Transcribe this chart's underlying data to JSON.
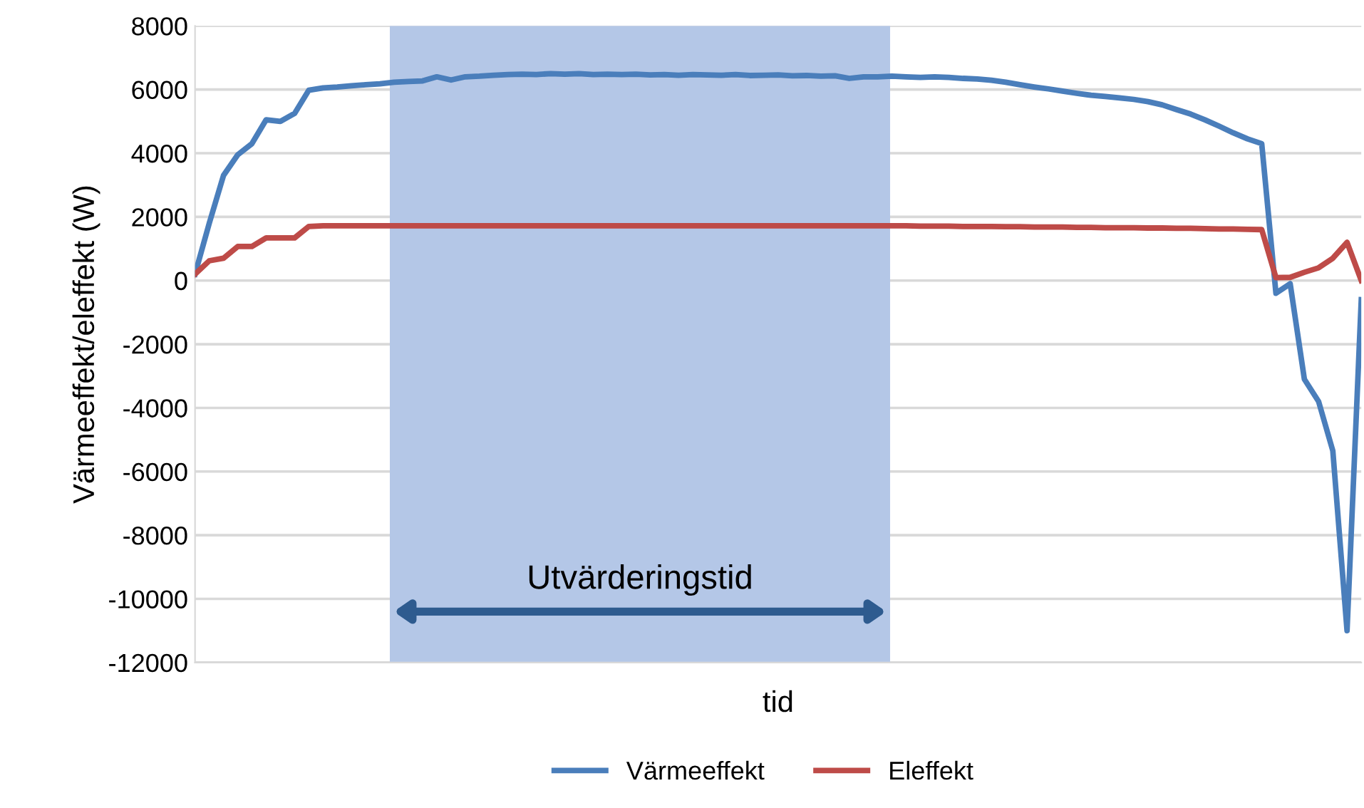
{
  "chart_data": {
    "type": "line",
    "xlabel": "tid",
    "ylabel": "Värmeeffekt/eleffekt (W)",
    "categories": [
      null,
      null,
      null,
      null,
      null,
      null,
      null,
      null,
      null,
      null,
      null,
      null,
      null,
      null,
      null,
      null,
      null,
      null,
      null,
      null,
      null,
      null,
      null,
      null,
      null,
      null,
      null,
      null,
      null,
      null,
      null,
      null,
      null,
      null,
      null,
      null,
      null,
      null,
      null,
      null,
      null,
      null,
      null,
      null,
      null,
      null,
      null,
      null,
      null,
      null,
      null,
      null,
      null,
      null,
      null,
      null,
      null,
      null,
      null,
      null,
      null,
      null,
      null,
      null,
      null,
      null,
      null,
      null,
      null,
      null,
      null,
      null,
      null,
      null,
      null,
      null,
      null,
      null,
      null,
      null,
      null,
      null,
      null
    ],
    "series": [
      {
        "name": "Värmeeffekt",
        "color": "#4a7ebb",
        "values": [
          200,
          1800,
          3300,
          3950,
          4300,
          5050,
          5000,
          5250,
          5980,
          6050,
          6080,
          6120,
          6150,
          6180,
          6230,
          6250,
          6270,
          6400,
          6300,
          6400,
          6420,
          6450,
          6470,
          6480,
          6470,
          6500,
          6480,
          6500,
          6470,
          6480,
          6470,
          6480,
          6460,
          6470,
          6450,
          6470,
          6460,
          6450,
          6470,
          6440,
          6450,
          6460,
          6430,
          6440,
          6420,
          6430,
          6350,
          6400,
          6400,
          6420,
          6400,
          6380,
          6400,
          6380,
          6350,
          6330,
          6290,
          6230,
          6150,
          6080,
          6020,
          5950,
          5880,
          5820,
          5780,
          5740,
          5690,
          5620,
          5520,
          5370,
          5230,
          5050,
          4850,
          4640,
          4450,
          4300,
          -400,
          -100,
          -3100,
          -3800,
          -5350,
          -11000,
          -600
        ]
      },
      {
        "name": "Eleffekt",
        "color": "#be4b48",
        "values": [
          200,
          620,
          700,
          1070,
          1070,
          1340,
          1340,
          1340,
          1700,
          1720,
          1720,
          1720,
          1720,
          1720,
          1720,
          1720,
          1720,
          1720,
          1720,
          1720,
          1720,
          1720,
          1720,
          1720,
          1720,
          1720,
          1720,
          1720,
          1720,
          1720,
          1720,
          1720,
          1720,
          1720,
          1720,
          1720,
          1720,
          1720,
          1720,
          1720,
          1720,
          1720,
          1720,
          1720,
          1720,
          1720,
          1720,
          1720,
          1720,
          1720,
          1720,
          1710,
          1710,
          1710,
          1700,
          1700,
          1700,
          1690,
          1690,
          1680,
          1680,
          1680,
          1670,
          1670,
          1660,
          1660,
          1660,
          1650,
          1650,
          1640,
          1640,
          1630,
          1620,
          1620,
          1610,
          1600,
          90,
          100,
          260,
          400,
          700,
          1200,
          0
        ]
      }
    ],
    "ylim": [
      -12000,
      8000
    ],
    "yticks": [
      -12000,
      -10000,
      -8000,
      -6000,
      -4000,
      -2000,
      0,
      2000,
      4000,
      6000,
      8000
    ],
    "annotations": [
      "Utvärderingstid"
    ],
    "grid": "y",
    "legend": "bottom"
  }
}
